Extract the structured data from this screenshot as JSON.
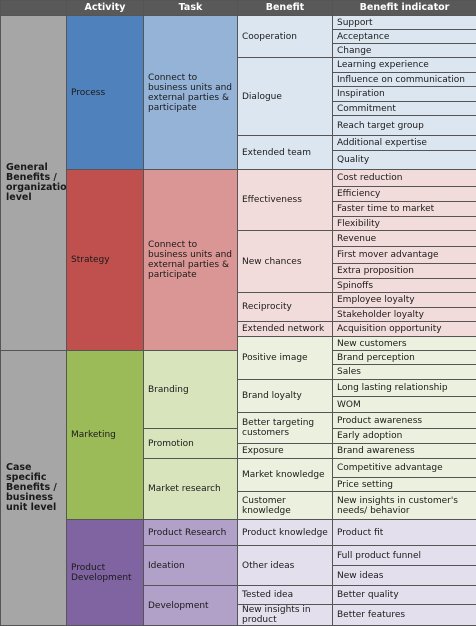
{
  "headers": [
    "Activity",
    "Task",
    "Benefit",
    "Benefit indicator"
  ],
  "levels": [
    {
      "label": "General Benefits / organizational level"
    },
    {
      "label": "Case specific Benefits / business unit level"
    }
  ],
  "activities": [
    {
      "label": "Process",
      "color": "#4f81bd"
    },
    {
      "label": "Strategy",
      "color": "#c0504d"
    },
    {
      "label": "Marketing",
      "color": "#9bbb59"
    },
    {
      "label": "Product Development",
      "color": "#8064a2"
    }
  ],
  "tasks": [
    {
      "label": "Connect to business units and external parties & participate",
      "color": "#95b3d7"
    },
    {
      "label": "Connect to business units and external parties & participate",
      "color": "#da9694"
    },
    {
      "label": "Branding",
      "color": "#d7e4bc"
    },
    {
      "label": "Promotion",
      "color": "#d7e4bc"
    },
    {
      "label": "Market research",
      "color": "#d7e4bc"
    },
    {
      "label": "Product Research",
      "color": "#b1a0c7"
    },
    {
      "label": "Ideation",
      "color": "#b1a0c7"
    },
    {
      "label": "Development",
      "color": "#b1a0c7"
    }
  ],
  "benefits": [
    {
      "label": "Cooperation",
      "color": "#dce6f1"
    },
    {
      "label": "Dialogue",
      "color": "#dce6f1"
    },
    {
      "label": "Extended team",
      "color": "#dce6f1"
    },
    {
      "label": "Effectiveness",
      "color": "#f2dcdb"
    },
    {
      "label": "New chances",
      "color": "#f2dcdb"
    },
    {
      "label": "Reciprocity",
      "color": "#f2dcdb"
    },
    {
      "label": "Extended network",
      "color": "#f2dcdb"
    },
    {
      "label": "Positive image",
      "color": "#ebf1de"
    },
    {
      "label": "Brand loyalty",
      "color": "#ebf1de"
    },
    {
      "label": "Better targeting customers",
      "color": "#ebf1de"
    },
    {
      "label": "Exposure",
      "color": "#ebf1de"
    },
    {
      "label": "Market knowledge",
      "color": "#ebf1de"
    },
    {
      "label": "Customer knowledge",
      "color": "#ebf1de"
    },
    {
      "label": "Product knowledge",
      "color": "#e4dfec"
    },
    {
      "label": "Other ideas",
      "color": "#e4dfec"
    },
    {
      "label": "Tested idea",
      "color": "#e4dfec"
    },
    {
      "label": "New insights in product",
      "color": "#e4dfec"
    }
  ],
  "indicators": [
    {
      "label": "Support",
      "color": "#dce6f1"
    },
    {
      "label": "Acceptance",
      "color": "#dce6f1"
    },
    {
      "label": "Change",
      "color": "#dce6f1"
    },
    {
      "label": "Learning experience",
      "color": "#dce6f1"
    },
    {
      "label": "Influence on communication",
      "color": "#dce6f1"
    },
    {
      "label": "Inspiration",
      "color": "#dce6f1"
    },
    {
      "label": "Commitment",
      "color": "#dce6f1"
    },
    {
      "label": "Reach target group",
      "color": "#dce6f1"
    },
    {
      "label": "Additional expertise",
      "color": "#dce6f1"
    },
    {
      "label": "Quality",
      "color": "#dce6f1"
    },
    {
      "label": "Cost reduction",
      "color": "#f2dcdb"
    },
    {
      "label": "Efficiency",
      "color": "#f2dcdb"
    },
    {
      "label": "Faster time to market",
      "color": "#f2dcdb"
    },
    {
      "label": "Flexibility",
      "color": "#f2dcdb"
    },
    {
      "label": "Revenue",
      "color": "#f2dcdb"
    },
    {
      "label": "First mover advantage",
      "color": "#f2dcdb"
    },
    {
      "label": "Extra proposition",
      "color": "#f2dcdb"
    },
    {
      "label": "Spinoffs",
      "color": "#f2dcdb"
    },
    {
      "label": "Employee loyalty",
      "color": "#f2dcdb"
    },
    {
      "label": "Stakeholder loyalty",
      "color": "#f2dcdb"
    },
    {
      "label": "Acquisition opportunity",
      "color": "#f2dcdb"
    },
    {
      "label": "New customers",
      "color": "#ebf1de"
    },
    {
      "label": "Brand perception",
      "color": "#ebf1de"
    },
    {
      "label": "Sales",
      "color": "#ebf1de"
    },
    {
      "label": "Long lasting relationship",
      "color": "#ebf1de"
    },
    {
      "label": "WOM",
      "color": "#ebf1de"
    },
    {
      "label": "Product awareness",
      "color": "#ebf1de"
    },
    {
      "label": "Early adoption",
      "color": "#ebf1de"
    },
    {
      "label": "Brand awareness",
      "color": "#ebf1de"
    },
    {
      "label": "Competitive advantage",
      "color": "#ebf1de"
    },
    {
      "label": "Price setting",
      "color": "#ebf1de"
    },
    {
      "label": "New insights in customer's needs/ behavior",
      "color": "#ebf1de"
    },
    {
      "label": "Product fit",
      "color": "#e4dfec"
    },
    {
      "label": "Full product funnel",
      "color": "#e4dfec"
    },
    {
      "label": "New ideas",
      "color": "#e4dfec"
    },
    {
      "label": "Better quality",
      "color": "#e4dfec"
    },
    {
      "label": "Better features",
      "color": "#e4dfec"
    }
  ]
}
